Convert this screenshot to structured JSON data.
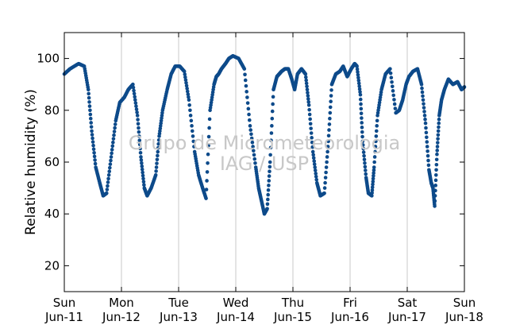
{
  "chart_data": {
    "type": "scatter",
    "title": "",
    "xlabel": "",
    "ylabel": "Relative humidity (%)",
    "ylim": [
      10,
      110
    ],
    "xlim": [
      0,
      7
    ],
    "y_ticks": [
      20,
      40,
      60,
      80,
      100
    ],
    "x_ticks": [
      {
        "x": 0,
        "day": "Sun",
        "date": "Jun-11"
      },
      {
        "x": 1,
        "day": "Mon",
        "date": "Jun-12"
      },
      {
        "x": 2,
        "day": "Tue",
        "date": "Jun-13"
      },
      {
        "x": 3,
        "day": "Wed",
        "date": "Jun-14"
      },
      {
        "x": 4,
        "day": "Thu",
        "date": "Jun-15"
      },
      {
        "x": 5,
        "day": "Fri",
        "date": "Jun-16"
      },
      {
        "x": 6,
        "day": "Sat",
        "date": "Jun-17"
      },
      {
        "x": 7,
        "day": "Sun",
        "date": "Jun-18"
      }
    ],
    "grid": "vertical lines at day boundaries",
    "marker_color": "#0d4a8a",
    "series": [
      {
        "name": "",
        "x": [
          0,
          0.1,
          0.25,
          0.35,
          0.42,
          0.48,
          0.55,
          0.62,
          0.68,
          0.74,
          0.82,
          0.9,
          0.97,
          1.05,
          1.12,
          1.2,
          1.28,
          1.34,
          1.4,
          1.45,
          1.52,
          1.6,
          1.66,
          1.72,
          1.8,
          1.87,
          1.94,
          2.02,
          2.1,
          2.18,
          2.28,
          2.35,
          2.42,
          2.48,
          2.55,
          2.62,
          2.66,
          2.7,
          2.75,
          2.82,
          2.88,
          2.95,
          3.05,
          3.15,
          3.25,
          3.35,
          3.4,
          3.45,
          3.5,
          3.55,
          3.6,
          3.66,
          3.72,
          3.76,
          3.8,
          3.86,
          3.92,
          3.98,
          4.03,
          4.08,
          4.15,
          4.22,
          4.28,
          4.35,
          4.42,
          4.48,
          4.55,
          4.62,
          4.68,
          4.75,
          4.82,
          4.88,
          4.95,
          5.02,
          5.08,
          5.12,
          5.18,
          5.22,
          5.28,
          5.32,
          5.38,
          5.42,
          5.48,
          5.55,
          5.62,
          5.7,
          5.8,
          5.86,
          5.92,
          5.98,
          6.03,
          6.1,
          6.18,
          6.25,
          6.32,
          6.38,
          6.42,
          6.45,
          6.48,
          6.52,
          6.56,
          6.6,
          6.65,
          6.72,
          6.8,
          6.88,
          6.95,
          7.0
        ],
        "y": [
          94,
          96,
          98,
          97,
          88,
          72,
          58,
          52,
          47,
          48,
          62,
          76,
          83,
          85,
          88,
          90,
          78,
          62,
          50,
          47,
          50,
          55,
          70,
          80,
          88,
          94,
          97,
          97,
          95,
          84,
          64,
          55,
          50,
          46,
          80,
          90,
          93,
          94,
          96,
          98,
          100,
          101,
          100,
          96,
          74,
          58,
          50,
          45,
          40,
          42,
          60,
          88,
          93,
          94,
          95,
          96,
          96,
          92,
          88,
          94,
          96,
          94,
          82,
          64,
          52,
          47,
          48,
          68,
          90,
          94,
          95,
          97,
          93,
          96,
          98,
          97,
          86,
          68,
          54,
          48,
          47,
          58,
          78,
          88,
          94,
          96,
          79,
          80,
          84,
          90,
          93,
          95,
          96,
          90,
          75,
          57,
          52,
          50,
          43,
          63,
          78,
          84,
          88,
          92,
          90,
          91,
          88,
          89
        ]
      }
    ],
    "watermark": [
      "Grupo de Micrometeorologia",
      "IAG / USP"
    ]
  }
}
